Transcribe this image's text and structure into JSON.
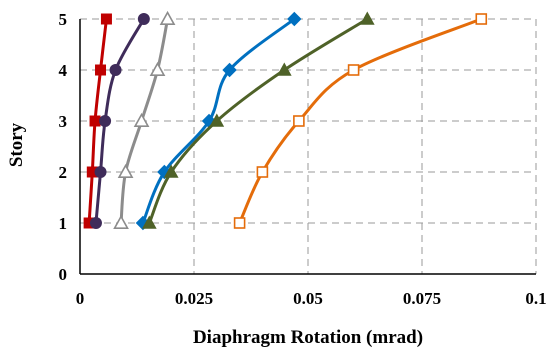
{
  "chart_data": {
    "type": "line",
    "title": "",
    "xlabel": "Diaphragm Rotation (mrad)",
    "ylabel": "Story",
    "xlim": [
      0,
      0.1
    ],
    "ylim": [
      0,
      5
    ],
    "x_ticks": [
      {
        "value": 0,
        "label": "0"
      },
      {
        "value": 0.025,
        "label": "0.025"
      },
      {
        "value": 0.05,
        "label": "0.05"
      },
      {
        "value": 0.075,
        "label": "0.075"
      },
      {
        "value": 0.1,
        "label": "0.1"
      }
    ],
    "y_ticks": [
      {
        "value": 0,
        "label": "0"
      },
      {
        "value": 1,
        "label": "1"
      },
      {
        "value": 2,
        "label": "2"
      },
      {
        "value": 3,
        "label": "3"
      },
      {
        "value": 4,
        "label": "4"
      },
      {
        "value": 5,
        "label": "5"
      }
    ],
    "grid": "dashed",
    "legend": "none",
    "series": [
      {
        "color": "#c00000",
        "marker": "square-filled",
        "points": [
          {
            "x": 0.002,
            "y": 1
          },
          {
            "x": 0.0027,
            "y": 2
          },
          {
            "x": 0.0033,
            "y": 3
          },
          {
            "x": 0.0045,
            "y": 4
          },
          {
            "x": 0.0058,
            "y": 5
          }
        ]
      },
      {
        "color": "#3f2c5a",
        "marker": "circle-filled",
        "points": [
          {
            "x": 0.0035,
            "y": 1
          },
          {
            "x": 0.0045,
            "y": 2
          },
          {
            "x": 0.0055,
            "y": 3
          },
          {
            "x": 0.0078,
            "y": 4
          },
          {
            "x": 0.014,
            "y": 5
          }
        ]
      },
      {
        "color": "#8c8c8c",
        "marker": "triangle-open",
        "points": [
          {
            "x": 0.009,
            "y": 1
          },
          {
            "x": 0.01,
            "y": 2
          },
          {
            "x": 0.0135,
            "y": 3
          },
          {
            "x": 0.017,
            "y": 4
          },
          {
            "x": 0.0192,
            "y": 5
          }
        ]
      },
      {
        "color": "#0070c0",
        "marker": "diamond-filled",
        "points": [
          {
            "x": 0.0138,
            "y": 1
          },
          {
            "x": 0.0185,
            "y": 2
          },
          {
            "x": 0.0283,
            "y": 3
          },
          {
            "x": 0.0328,
            "y": 4
          },
          {
            "x": 0.047,
            "y": 5
          }
        ]
      },
      {
        "color": "#4f6228",
        "marker": "triangle-filled",
        "points": [
          {
            "x": 0.0152,
            "y": 1
          },
          {
            "x": 0.02,
            "y": 2
          },
          {
            "x": 0.03,
            "y": 3
          },
          {
            "x": 0.0448,
            "y": 4
          },
          {
            "x": 0.063,
            "y": 5
          }
        ]
      },
      {
        "color": "#e46c0a",
        "marker": "square-open",
        "points": [
          {
            "x": 0.035,
            "y": 1
          },
          {
            "x": 0.04,
            "y": 2
          },
          {
            "x": 0.048,
            "y": 3
          },
          {
            "x": 0.06,
            "y": 4
          },
          {
            "x": 0.088,
            "y": 5
          }
        ]
      }
    ]
  }
}
